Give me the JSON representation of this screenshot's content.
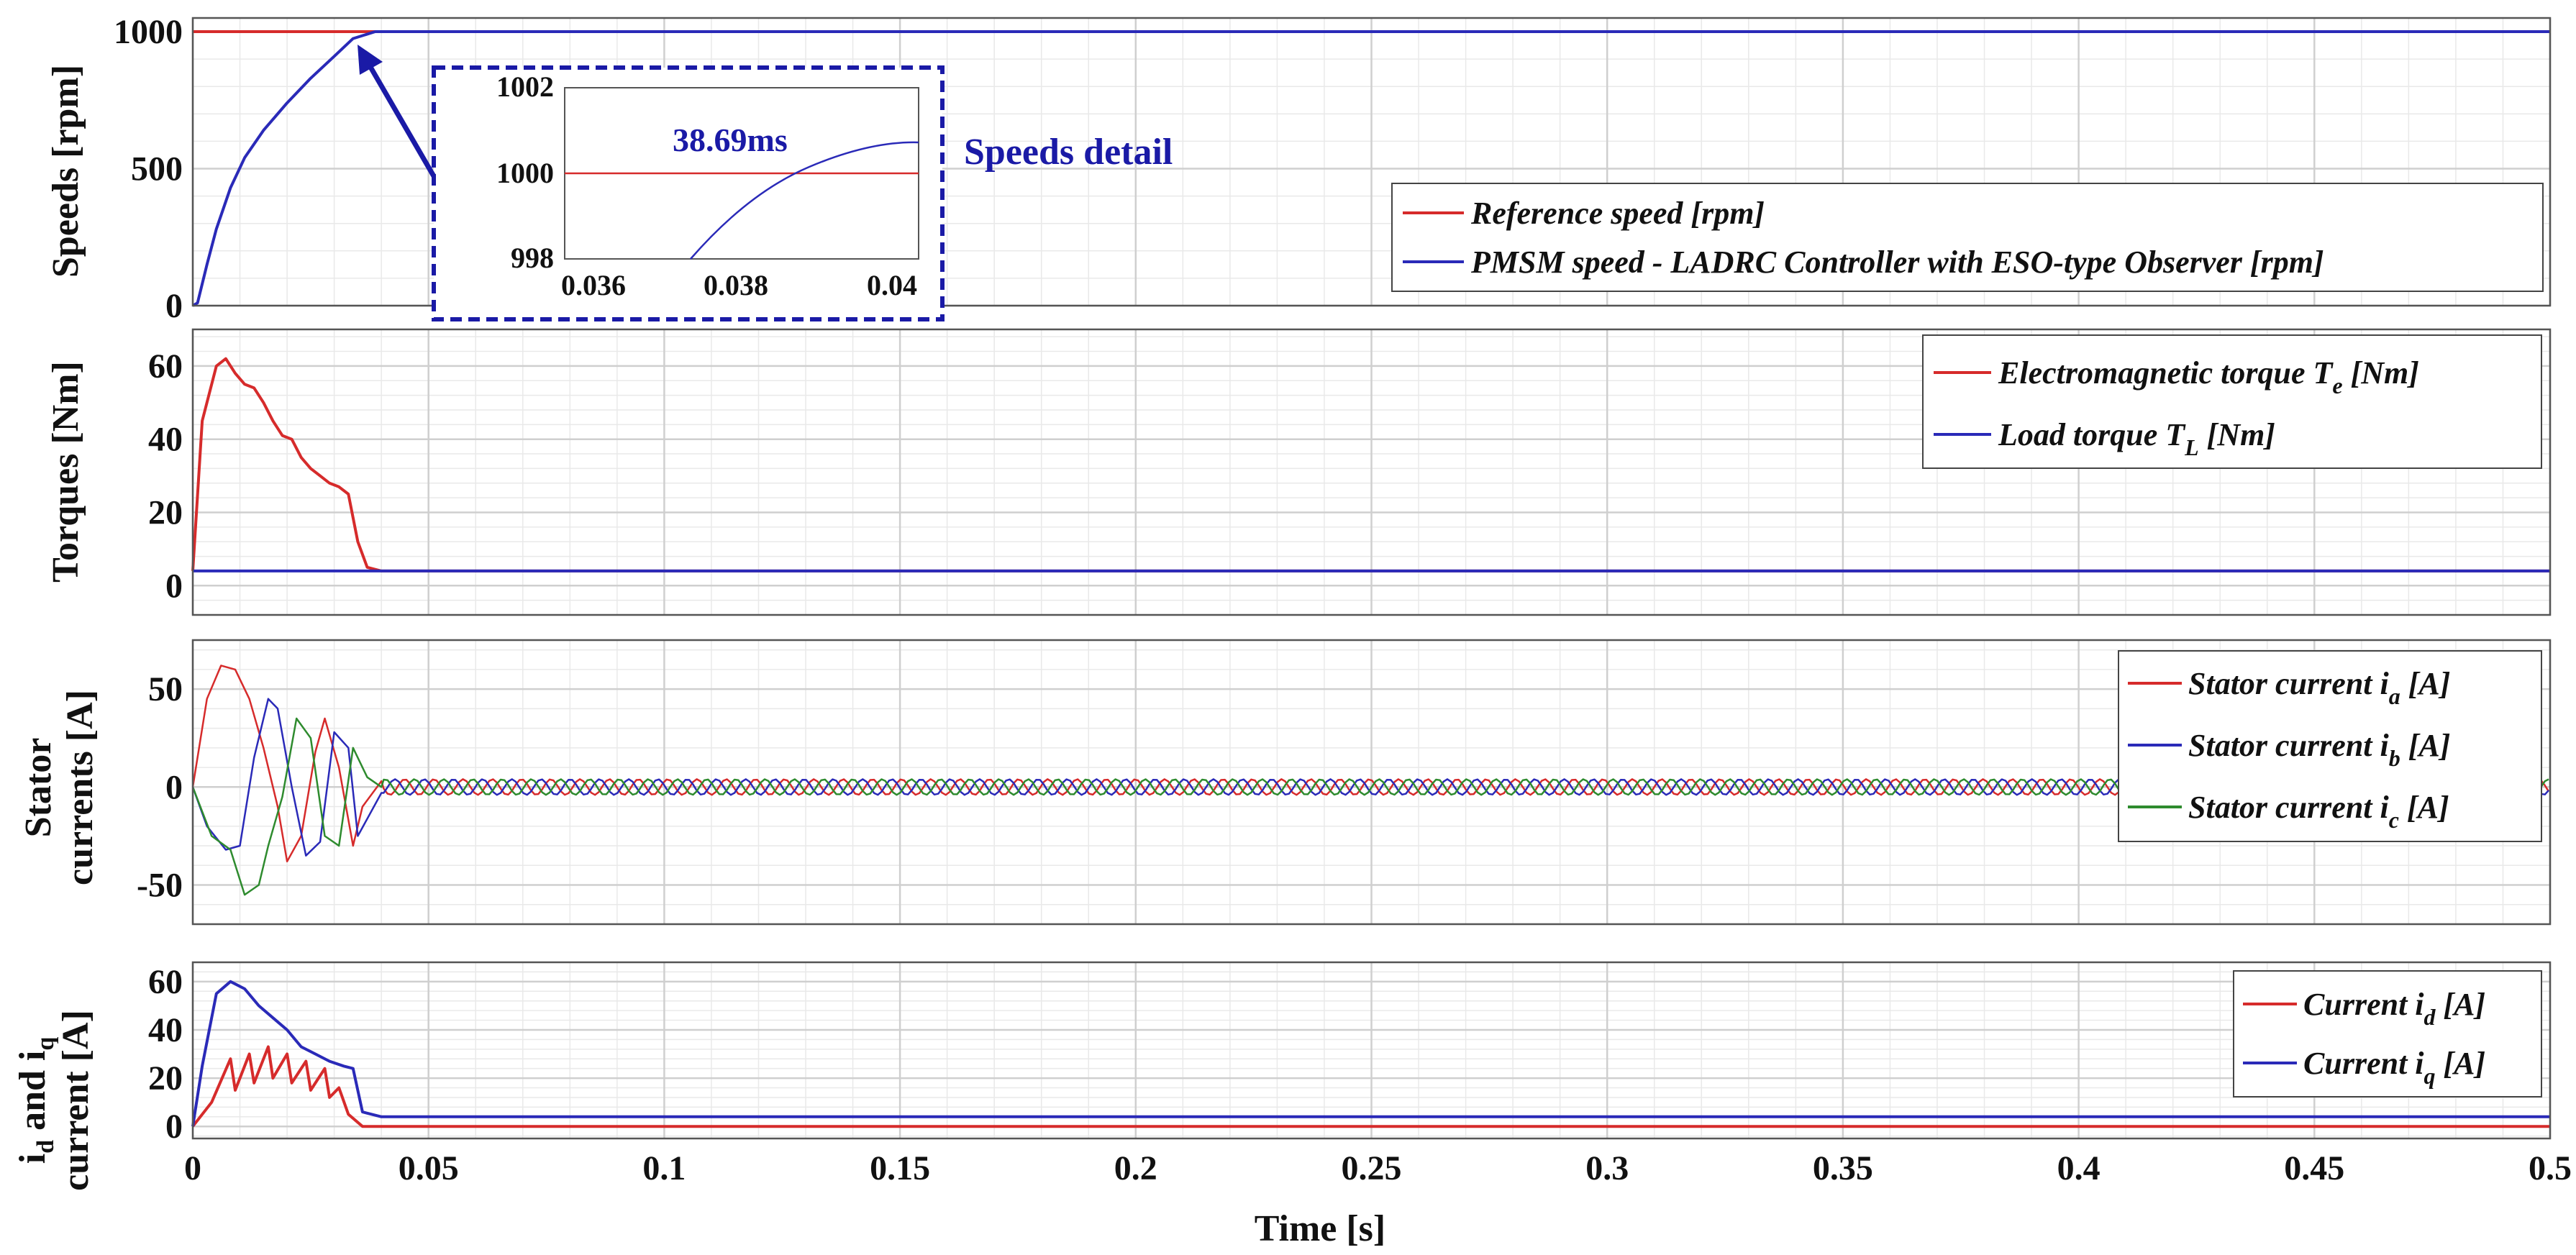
{
  "figure": {
    "xlabel": "Time [s]",
    "x_ticks": [
      "0",
      "0.05",
      "0.1",
      "0.15",
      "0.2",
      "0.25",
      "0.3",
      "0.35",
      "0.4",
      "0.45",
      "0.5"
    ],
    "xlim": [
      0,
      0.5
    ],
    "colors": {
      "red": "#d62b2b",
      "blue": "#2a2ab8",
      "green": "#2e8b2e",
      "grid": "#cfcfcf",
      "minor": "#e9e9e9"
    }
  },
  "inset": {
    "annotation": "38.69ms",
    "label": "Speeds detail",
    "x_ticks": [
      "0.036",
      "0.038",
      "0.04"
    ],
    "y_ticks": [
      "1002",
      "1000",
      "998"
    ]
  },
  "legend": {
    "speed_ref": "Reference speed [rpm]",
    "speed_pmsm": "PMSM speed - LADRC Controller with ESO-type Observer [rpm]",
    "te_main": "Electromagnetic torque T",
    "te_sub": "e",
    "te_unit": " [Nm]",
    "tl_main": "Load torque T",
    "tl_sub": "L",
    "tl_unit": " [Nm]",
    "ia_main": "Stator current i",
    "ia_sub": "a",
    "ia_unit": " [A]",
    "ib_main": "Stator current i",
    "ib_sub": "b",
    "ib_unit": " [A]",
    "ic_main": "Stator current i",
    "ic_sub": "c",
    "ic_unit": " [A]",
    "id_main": "Current i",
    "id_sub": "d",
    "id_unit": " [A]",
    "iq_main": "Current i",
    "iq_sub": "q",
    "iq_unit": " [A]"
  },
  "ylabels": {
    "speed": "Speeds [rpm]",
    "torque": "Torques [Nm]",
    "stator_l1": "Stator",
    "stator_l2": "currents [A]",
    "idq_l1_a": "i",
    "idq_l1_sub1": "d",
    "idq_l1_b": " and i",
    "idq_l1_sub2": "q",
    "idq_l2": "current [A]"
  },
  "chart_data": [
    {
      "type": "line",
      "ylabel": "Speeds [rpm]",
      "ylim": [
        0,
        1050
      ],
      "y_ticks": [
        "0",
        "500",
        "1000"
      ],
      "grid": true,
      "legend_position": "right",
      "series": [
        {
          "name": "Reference speed [rpm]",
          "color": "#d62b2b",
          "x": [
            0,
            0.5
          ],
          "y": [
            1000,
            1000
          ]
        },
        {
          "name": "PMSM speed - LADRC Controller with ESO-type Observer [rpm]",
          "color": "#2a2ab8",
          "x": [
            0,
            0.001,
            0.003,
            0.005,
            0.008,
            0.011,
            0.015,
            0.02,
            0.025,
            0.03,
            0.034,
            0.03869,
            0.5
          ],
          "y": [
            0,
            10,
            150,
            280,
            430,
            540,
            640,
            740,
            830,
            910,
            975,
            1000,
            1000
          ]
        }
      ]
    },
    {
      "type": "line",
      "ylabel": "Torques [Nm]",
      "ylim": [
        -8,
        70
      ],
      "y_ticks": [
        "0",
        "20",
        "40",
        "60"
      ],
      "grid": true,
      "legend_position": "top-right",
      "series": [
        {
          "name": "Electromagnetic torque Te [Nm]",
          "color": "#d62b2b",
          "x": [
            0,
            0.002,
            0.005,
            0.007,
            0.009,
            0.011,
            0.013,
            0.015,
            0.017,
            0.019,
            0.021,
            0.023,
            0.025,
            0.027,
            0.029,
            0.031,
            0.033,
            0.035,
            0.037,
            0.04,
            0.5
          ],
          "y": [
            4,
            45,
            60,
            62,
            58,
            55,
            54,
            50,
            45,
            41,
            40,
            35,
            32,
            30,
            28,
            27,
            25,
            12,
            5,
            4,
            4
          ]
        },
        {
          "name": "Load torque TL [Nm]",
          "color": "#2a2ab8",
          "x": [
            0,
            0.5
          ],
          "y": [
            4,
            4
          ]
        }
      ]
    },
    {
      "type": "line",
      "ylabel": "Stator currents [A]",
      "ylim": [
        -70,
        75
      ],
      "y_ticks": [
        "-50",
        "0",
        "50"
      ],
      "grid": true,
      "legend_position": "right",
      "series": [
        {
          "name": "Stator current ia [A]",
          "color": "#d62b2b",
          "x": [
            0,
            0.003,
            0.006,
            0.009,
            0.012,
            0.015,
            0.018,
            0.02,
            0.023,
            0.026,
            0.028,
            0.031,
            0.034,
            0.036,
            0.04
          ],
          "y": [
            0,
            45,
            62,
            60,
            45,
            20,
            -10,
            -38,
            -25,
            18,
            35,
            10,
            -30,
            -10,
            3
          ]
        },
        {
          "name": "Stator current ib [A]",
          "color": "#2a2ab8",
          "x": [
            0,
            0.003,
            0.007,
            0.01,
            0.013,
            0.016,
            0.018,
            0.021,
            0.024,
            0.027,
            0.03,
            0.033,
            0.035,
            0.04
          ],
          "y": [
            0,
            -20,
            -32,
            -30,
            15,
            45,
            40,
            0,
            -35,
            -28,
            28,
            20,
            -25,
            -3
          ]
        },
        {
          "name": "Stator current ic [A]",
          "color": "#2e8b2e",
          "x": [
            0,
            0.004,
            0.008,
            0.011,
            0.014,
            0.016,
            0.019,
            0.022,
            0.025,
            0.028,
            0.031,
            0.034,
            0.037,
            0.04
          ],
          "y": [
            0,
            -25,
            -32,
            -55,
            -50,
            -30,
            -5,
            35,
            25,
            -25,
            -30,
            20,
            5,
            0
          ]
        }
      ],
      "steady_state_amplitude": 4
    },
    {
      "type": "line",
      "ylabel": "id and iq current [A]",
      "ylim": [
        -5,
        68
      ],
      "y_ticks": [
        "0",
        "20",
        "40",
        "60"
      ],
      "grid": true,
      "legend_position": "right",
      "series": [
        {
          "name": "Current id [A]",
          "color": "#d62b2b",
          "x": [
            0,
            0.004,
            0.008,
            0.009,
            0.012,
            0.013,
            0.016,
            0.017,
            0.02,
            0.021,
            0.024,
            0.025,
            0.028,
            0.029,
            0.031,
            0.033,
            0.036,
            0.04,
            0.5
          ],
          "y": [
            0,
            10,
            28,
            15,
            30,
            18,
            33,
            20,
            30,
            18,
            27,
            15,
            24,
            12,
            16,
            5,
            0,
            0,
            0
          ]
        },
        {
          "name": "Current iq [A]",
          "color": "#2a2ab8",
          "x": [
            0,
            0.002,
            0.005,
            0.008,
            0.011,
            0.014,
            0.017,
            0.02,
            0.023,
            0.026,
            0.029,
            0.032,
            0.034,
            0.036,
            0.04,
            0.5
          ],
          "y": [
            0,
            25,
            55,
            60,
            57,
            50,
            45,
            40,
            33,
            30,
            27,
            25,
            24,
            6,
            4,
            4
          ]
        }
      ]
    }
  ]
}
